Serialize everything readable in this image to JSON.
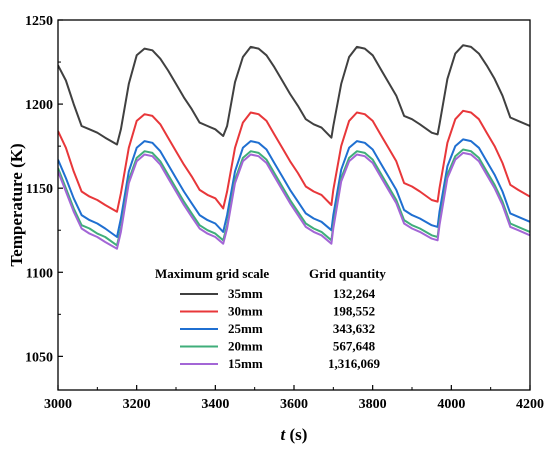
{
  "chart_data": {
    "type": "line",
    "xlabel_italic": "t",
    "xlabel_rest": " (s)",
    "ylabel": "Temperature (K)",
    "xlim": [
      3000,
      4200
    ],
    "ylim": [
      1030,
      1250
    ],
    "xticks": [
      3000,
      3200,
      3400,
      3600,
      3800,
      4000,
      4200
    ],
    "yticks": [
      1050,
      1100,
      1150,
      1200,
      1250
    ],
    "legend": {
      "placement": "bottom-center",
      "header_name": "Maximum grid scale",
      "header_value": "Grid quantity"
    },
    "series": [
      {
        "name": "35mm",
        "quantity": "132,264",
        "color": "#404040",
        "points": [
          [
            3000,
            1223
          ],
          [
            3020,
            1214
          ],
          [
            3040,
            1200
          ],
          [
            3060,
            1187
          ],
          [
            3080,
            1185
          ],
          [
            3100,
            1183
          ],
          [
            3120,
            1180
          ],
          [
            3150,
            1176
          ],
          [
            3160,
            1185
          ],
          [
            3180,
            1212
          ],
          [
            3200,
            1229
          ],
          [
            3220,
            1233
          ],
          [
            3240,
            1232
          ],
          [
            3260,
            1227
          ],
          [
            3280,
            1220
          ],
          [
            3300,
            1212
          ],
          [
            3320,
            1204
          ],
          [
            3340,
            1197
          ],
          [
            3360,
            1189
          ],
          [
            3380,
            1187
          ],
          [
            3400,
            1185
          ],
          [
            3420,
            1181
          ],
          [
            3430,
            1187
          ],
          [
            3450,
            1213
          ],
          [
            3470,
            1228
          ],
          [
            3490,
            1234
          ],
          [
            3510,
            1233
          ],
          [
            3530,
            1229
          ],
          [
            3550,
            1222
          ],
          [
            3570,
            1214
          ],
          [
            3590,
            1206
          ],
          [
            3610,
            1199
          ],
          [
            3630,
            1191
          ],
          [
            3650,
            1188
          ],
          [
            3670,
            1186
          ],
          [
            3695,
            1180
          ],
          [
            3700,
            1187
          ],
          [
            3720,
            1212
          ],
          [
            3740,
            1228
          ],
          [
            3760,
            1234
          ],
          [
            3780,
            1233
          ],
          [
            3800,
            1229
          ],
          [
            3820,
            1221
          ],
          [
            3840,
            1213
          ],
          [
            3860,
            1205
          ],
          [
            3880,
            1193
          ],
          [
            3900,
            1191
          ],
          [
            3920,
            1188
          ],
          [
            3950,
            1183
          ],
          [
            3965,
            1182
          ],
          [
            3970,
            1188
          ],
          [
            3990,
            1215
          ],
          [
            4010,
            1230
          ],
          [
            4030,
            1235
          ],
          [
            4050,
            1234
          ],
          [
            4070,
            1230
          ],
          [
            4090,
            1223
          ],
          [
            4110,
            1215
          ],
          [
            4130,
            1205
          ],
          [
            4150,
            1192
          ],
          [
            4170,
            1190
          ],
          [
            4200,
            1187
          ]
        ]
      },
      {
        "name": "30mm",
        "quantity": "198,552",
        "color": "#e8373a",
        "points": [
          [
            3000,
            1184
          ],
          [
            3020,
            1174
          ],
          [
            3040,
            1160
          ],
          [
            3060,
            1148
          ],
          [
            3080,
            1145
          ],
          [
            3100,
            1143
          ],
          [
            3120,
            1140
          ],
          [
            3150,
            1136
          ],
          [
            3160,
            1147
          ],
          [
            3180,
            1174
          ],
          [
            3200,
            1190
          ],
          [
            3220,
            1194
          ],
          [
            3240,
            1193
          ],
          [
            3260,
            1188
          ],
          [
            3280,
            1180
          ],
          [
            3300,
            1172
          ],
          [
            3320,
            1164
          ],
          [
            3340,
            1157
          ],
          [
            3360,
            1149
          ],
          [
            3380,
            1146
          ],
          [
            3400,
            1144
          ],
          [
            3420,
            1138
          ],
          [
            3430,
            1148
          ],
          [
            3450,
            1174
          ],
          [
            3470,
            1189
          ],
          [
            3490,
            1195
          ],
          [
            3510,
            1194
          ],
          [
            3530,
            1190
          ],
          [
            3550,
            1182
          ],
          [
            3570,
            1174
          ],
          [
            3590,
            1166
          ],
          [
            3610,
            1159
          ],
          [
            3630,
            1151
          ],
          [
            3650,
            1148
          ],
          [
            3670,
            1146
          ],
          [
            3695,
            1140
          ],
          [
            3700,
            1149
          ],
          [
            3720,
            1175
          ],
          [
            3740,
            1190
          ],
          [
            3760,
            1195
          ],
          [
            3780,
            1194
          ],
          [
            3800,
            1190
          ],
          [
            3820,
            1182
          ],
          [
            3840,
            1174
          ],
          [
            3860,
            1166
          ],
          [
            3880,
            1153
          ],
          [
            3900,
            1151
          ],
          [
            3920,
            1148
          ],
          [
            3950,
            1143
          ],
          [
            3965,
            1142
          ],
          [
            3970,
            1150
          ],
          [
            3990,
            1177
          ],
          [
            4010,
            1191
          ],
          [
            4030,
            1196
          ],
          [
            4050,
            1195
          ],
          [
            4070,
            1191
          ],
          [
            4090,
            1183
          ],
          [
            4110,
            1175
          ],
          [
            4130,
            1165
          ],
          [
            4150,
            1152
          ],
          [
            4170,
            1149
          ],
          [
            4200,
            1145
          ]
        ]
      },
      {
        "name": "25mm",
        "quantity": "343,632",
        "color": "#1f6fd1",
        "points": [
          [
            3000,
            1167
          ],
          [
            3020,
            1156
          ],
          [
            3040,
            1144
          ],
          [
            3060,
            1134
          ],
          [
            3080,
            1131
          ],
          [
            3100,
            1129
          ],
          [
            3120,
            1126
          ],
          [
            3150,
            1121
          ],
          [
            3160,
            1132
          ],
          [
            3180,
            1160
          ],
          [
            3200,
            1174
          ],
          [
            3220,
            1178
          ],
          [
            3240,
            1177
          ],
          [
            3260,
            1172
          ],
          [
            3280,
            1164
          ],
          [
            3300,
            1156
          ],
          [
            3320,
            1148
          ],
          [
            3340,
            1141
          ],
          [
            3360,
            1134
          ],
          [
            3380,
            1131
          ],
          [
            3400,
            1129
          ],
          [
            3420,
            1124
          ],
          [
            3430,
            1134
          ],
          [
            3450,
            1160
          ],
          [
            3470,
            1174
          ],
          [
            3490,
            1178
          ],
          [
            3510,
            1177
          ],
          [
            3530,
            1173
          ],
          [
            3550,
            1165
          ],
          [
            3570,
            1157
          ],
          [
            3590,
            1149
          ],
          [
            3610,
            1142
          ],
          [
            3630,
            1135
          ],
          [
            3650,
            1132
          ],
          [
            3670,
            1130
          ],
          [
            3695,
            1125
          ],
          [
            3700,
            1134
          ],
          [
            3720,
            1161
          ],
          [
            3740,
            1174
          ],
          [
            3760,
            1178
          ],
          [
            3780,
            1177
          ],
          [
            3800,
            1173
          ],
          [
            3820,
            1165
          ],
          [
            3840,
            1157
          ],
          [
            3860,
            1149
          ],
          [
            3880,
            1137
          ],
          [
            3900,
            1134
          ],
          [
            3920,
            1132
          ],
          [
            3950,
            1128
          ],
          [
            3965,
            1127
          ],
          [
            3970,
            1136
          ],
          [
            3990,
            1163
          ],
          [
            4010,
            1175
          ],
          [
            4030,
            1179
          ],
          [
            4050,
            1178
          ],
          [
            4070,
            1174
          ],
          [
            4090,
            1166
          ],
          [
            4110,
            1158
          ],
          [
            4130,
            1148
          ],
          [
            4150,
            1135
          ],
          [
            4170,
            1133
          ],
          [
            4200,
            1130
          ]
        ]
      },
      {
        "name": "20mm",
        "quantity": "567,648",
        "color": "#3fae7a",
        "points": [
          [
            3000,
            1162
          ],
          [
            3020,
            1150
          ],
          [
            3040,
            1138
          ],
          [
            3060,
            1128
          ],
          [
            3080,
            1126
          ],
          [
            3100,
            1123
          ],
          [
            3120,
            1121
          ],
          [
            3150,
            1116
          ],
          [
            3160,
            1126
          ],
          [
            3180,
            1155
          ],
          [
            3200,
            1168
          ],
          [
            3220,
            1172
          ],
          [
            3240,
            1171
          ],
          [
            3260,
            1166
          ],
          [
            3280,
            1158
          ],
          [
            3300,
            1150
          ],
          [
            3320,
            1142
          ],
          [
            3340,
            1135
          ],
          [
            3360,
            1128
          ],
          [
            3380,
            1125
          ],
          [
            3400,
            1123
          ],
          [
            3420,
            1119
          ],
          [
            3430,
            1128
          ],
          [
            3450,
            1155
          ],
          [
            3470,
            1168
          ],
          [
            3490,
            1172
          ],
          [
            3510,
            1171
          ],
          [
            3530,
            1167
          ],
          [
            3550,
            1159
          ],
          [
            3570,
            1151
          ],
          [
            3590,
            1143
          ],
          [
            3610,
            1136
          ],
          [
            3630,
            1129
          ],
          [
            3650,
            1126
          ],
          [
            3670,
            1124
          ],
          [
            3695,
            1119
          ],
          [
            3700,
            1128
          ],
          [
            3720,
            1156
          ],
          [
            3740,
            1168
          ],
          [
            3760,
            1172
          ],
          [
            3780,
            1171
          ],
          [
            3800,
            1167
          ],
          [
            3820,
            1159
          ],
          [
            3840,
            1151
          ],
          [
            3860,
            1143
          ],
          [
            3880,
            1131
          ],
          [
            3900,
            1128
          ],
          [
            3920,
            1126
          ],
          [
            3950,
            1122
          ],
          [
            3965,
            1121
          ],
          [
            3970,
            1130
          ],
          [
            3990,
            1158
          ],
          [
            4010,
            1169
          ],
          [
            4030,
            1173
          ],
          [
            4050,
            1172
          ],
          [
            4070,
            1168
          ],
          [
            4090,
            1160
          ],
          [
            4110,
            1152
          ],
          [
            4130,
            1142
          ],
          [
            4150,
            1129
          ],
          [
            4170,
            1127
          ],
          [
            4200,
            1124
          ]
        ]
      },
      {
        "name": "15mm",
        "quantity": "1,316,069",
        "color": "#a366d6",
        "points": [
          [
            3000,
            1160
          ],
          [
            3020,
            1148
          ],
          [
            3040,
            1136
          ],
          [
            3060,
            1126
          ],
          [
            3080,
            1123
          ],
          [
            3100,
            1121
          ],
          [
            3120,
            1118
          ],
          [
            3150,
            1114
          ],
          [
            3160,
            1124
          ],
          [
            3180,
            1153
          ],
          [
            3200,
            1166
          ],
          [
            3220,
            1170
          ],
          [
            3240,
            1169
          ],
          [
            3260,
            1164
          ],
          [
            3280,
            1156
          ],
          [
            3300,
            1148
          ],
          [
            3320,
            1140
          ],
          [
            3340,
            1133
          ],
          [
            3360,
            1126
          ],
          [
            3380,
            1123
          ],
          [
            3400,
            1121
          ],
          [
            3420,
            1117
          ],
          [
            3430,
            1126
          ],
          [
            3450,
            1153
          ],
          [
            3470,
            1166
          ],
          [
            3490,
            1170
          ],
          [
            3510,
            1169
          ],
          [
            3530,
            1165
          ],
          [
            3550,
            1157
          ],
          [
            3570,
            1149
          ],
          [
            3590,
            1141
          ],
          [
            3610,
            1134
          ],
          [
            3630,
            1127
          ],
          [
            3650,
            1124
          ],
          [
            3670,
            1122
          ],
          [
            3695,
            1117
          ],
          [
            3700,
            1126
          ],
          [
            3720,
            1154
          ],
          [
            3740,
            1166
          ],
          [
            3760,
            1170
          ],
          [
            3780,
            1169
          ],
          [
            3800,
            1165
          ],
          [
            3820,
            1157
          ],
          [
            3840,
            1149
          ],
          [
            3860,
            1141
          ],
          [
            3880,
            1129
          ],
          [
            3900,
            1126
          ],
          [
            3920,
            1124
          ],
          [
            3950,
            1120
          ],
          [
            3965,
            1119
          ],
          [
            3970,
            1128
          ],
          [
            3990,
            1156
          ],
          [
            4010,
            1167
          ],
          [
            4030,
            1171
          ],
          [
            4050,
            1170
          ],
          [
            4070,
            1166
          ],
          [
            4090,
            1158
          ],
          [
            4110,
            1150
          ],
          [
            4130,
            1140
          ],
          [
            4150,
            1127
          ],
          [
            4170,
            1125
          ],
          [
            4200,
            1122
          ]
        ]
      }
    ]
  }
}
